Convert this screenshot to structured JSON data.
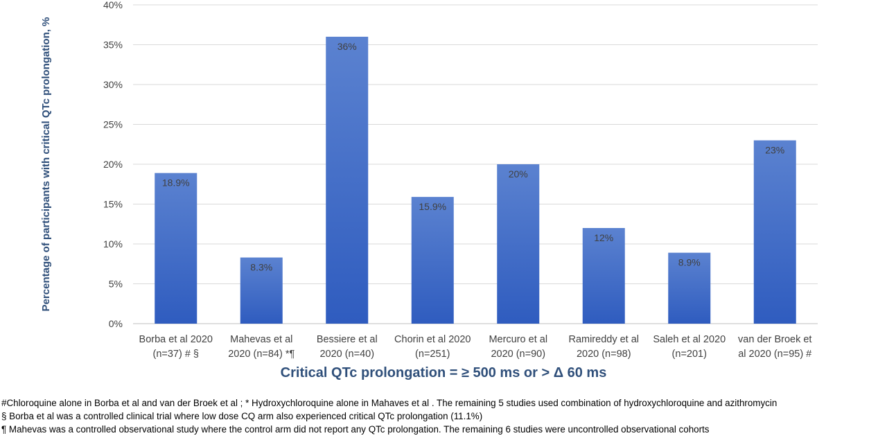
{
  "chart_data": {
    "type": "bar",
    "title": "",
    "xlabel": "Critical QTc prolongation = ≥ 500 ms or > Δ 60 ms",
    "ylabel": "Percentage of participants with critical QTc prolongation, %",
    "ylim": [
      0,
      40
    ],
    "yticks": [
      "0%",
      "5%",
      "10%",
      "15%",
      "20%",
      "25%",
      "30%",
      "35%",
      "40%"
    ],
    "grid": true,
    "legend": "none",
    "bar_color": "#4472c4",
    "categories": [
      [
        "Borba et al 2020",
        "(n=37) # §"
      ],
      [
        "Mahevas et al",
        "2020 (n=84) *¶"
      ],
      [
        "Bessiere et al",
        "2020 (n=40)"
      ],
      [
        "Chorin et al 2020",
        "(n=251)"
      ],
      [
        "Mercuro et al",
        "2020 (n=90)"
      ],
      [
        "Ramireddy et al",
        "2020 (n=98)"
      ],
      [
        "Saleh et al 2020",
        "(n=201)"
      ],
      [
        "van der Broek et",
        "al 2020 (n=95)  #"
      ]
    ],
    "values": [
      18.9,
      8.3,
      36,
      15.9,
      20,
      12,
      8.9,
      23
    ],
    "data_labels": [
      "18.9%",
      "8.3%",
      "36%",
      "15.9%",
      "20%",
      "12%",
      "8.9%",
      "23%"
    ]
  },
  "footnotes": [
    "#Chloroquine alone in  Borba et al and van der Broek et al ; * Hydroxychloroquine alone in Mahaves et al .  The remaining 5 studies used combination of hydroxychloroquine and azithromycin",
    "§ Borba et al was a controlled clinical trial where low dose CQ arm also experienced critical QTc prolongation (11.1%)",
    "¶ Mahevas was a controlled observational study where the control arm did not report any QTc prolongation. The remaining 6 studies were uncontrolled observational cohorts"
  ]
}
